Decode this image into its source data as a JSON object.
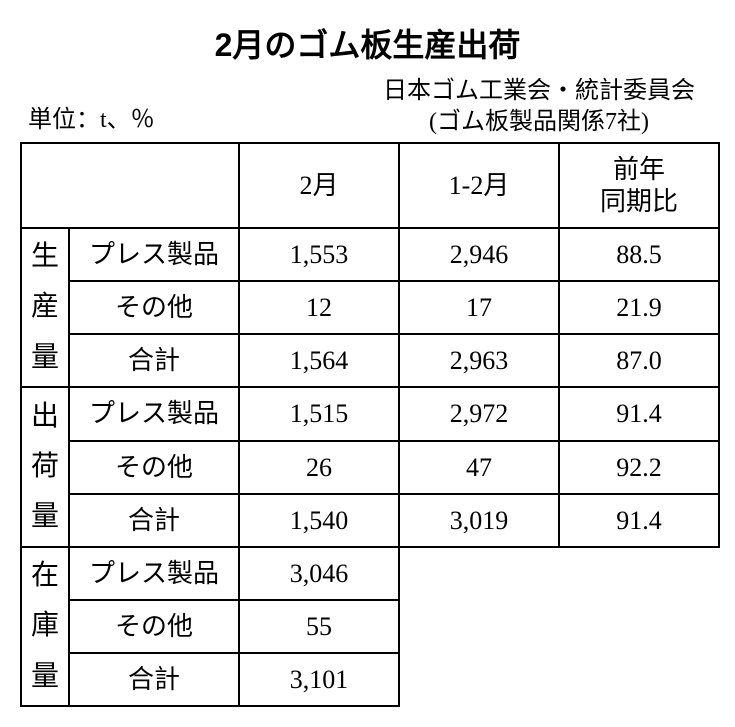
{
  "title": "2月のゴム板生産出荷",
  "unit_label": "単位：t、％",
  "source_line1": "日本ゴム工業会・統計委員会",
  "source_line2": "(ゴム板製品関係7社)",
  "headers": {
    "col_month": "2月",
    "col_cum": "1-2月",
    "col_yoy": "前年\n同期比"
  },
  "groups": [
    {
      "name": "生産量",
      "rows": [
        {
          "label": "プレス製品",
          "month": "1,553",
          "cum": "2,946",
          "yoy": "88.5"
        },
        {
          "label": "その他",
          "month": "12",
          "cum": "17",
          "yoy": "21.9"
        },
        {
          "label": "合計",
          "month": "1,564",
          "cum": "2,963",
          "yoy": "87.0"
        }
      ]
    },
    {
      "name": "出荷量",
      "rows": [
        {
          "label": "プレス製品",
          "month": "1,515",
          "cum": "2,972",
          "yoy": "91.4"
        },
        {
          "label": "その他",
          "month": "26",
          "cum": "47",
          "yoy": "92.2"
        },
        {
          "label": "合計",
          "month": "1,540",
          "cum": "3,019",
          "yoy": "91.4"
        }
      ]
    },
    {
      "name": "在庫量",
      "rows": [
        {
          "label": "プレス製品",
          "month": "3,046"
        },
        {
          "label": "その他",
          "month": "55"
        },
        {
          "label": "合計",
          "month": "3,101"
        }
      ]
    }
  ]
}
